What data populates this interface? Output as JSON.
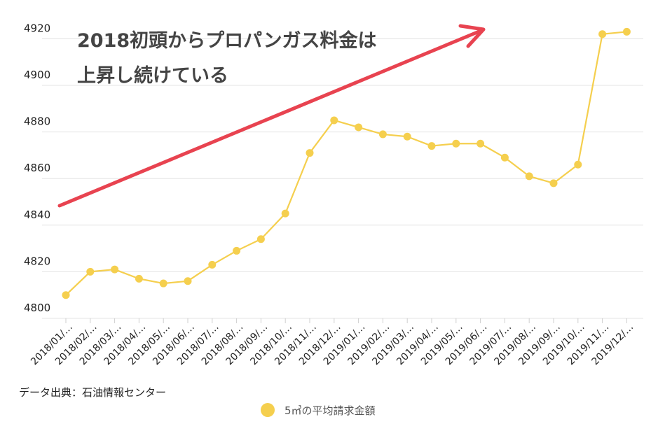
{
  "chart_data": {
    "type": "line",
    "title": "",
    "xlabel": "",
    "ylabel": "",
    "ylim": [
      4795,
      4925
    ],
    "yticks": [
      4800,
      4820,
      4840,
      4860,
      4880,
      4900,
      4920
    ],
    "grid": true,
    "legend_position": "bottom-center",
    "categories": [
      "2018/01/…",
      "2018/02/…",
      "2018/03/…",
      "2018/04/…",
      "2018/05/…",
      "2018/06/…",
      "2018/07/…",
      "2018/08/…",
      "2018/09/…",
      "2018/10/…",
      "2018/11/…",
      "2018/12/…",
      "2019/01/…",
      "2019/02/…",
      "2019/03/…",
      "2019/04/…",
      "2019/05/…",
      "2019/06/…",
      "2019/07/…",
      "2019/08/…",
      "2019/09/…",
      "2019/10/…",
      "2019/11/…",
      "2019/12/…"
    ],
    "series": [
      {
        "name": "5㎥の平均請求金額",
        "color": "#f5cf4e",
        "values": [
          4810,
          4820,
          4821,
          4817,
          4815,
          4816,
          4823,
          4829,
          4834,
          4845,
          4871,
          4885,
          4882,
          4879,
          4878,
          4874,
          4875,
          4875,
          4869,
          4861,
          4858,
          4866,
          4922,
          4923
        ]
      }
    ],
    "annotation": {
      "lines": [
        "2018初頭からプロパンガス料金は",
        "上昇し続けている"
      ],
      "arrow_color": "#e84350"
    },
    "source": "データ出典：石油情報センター"
  }
}
